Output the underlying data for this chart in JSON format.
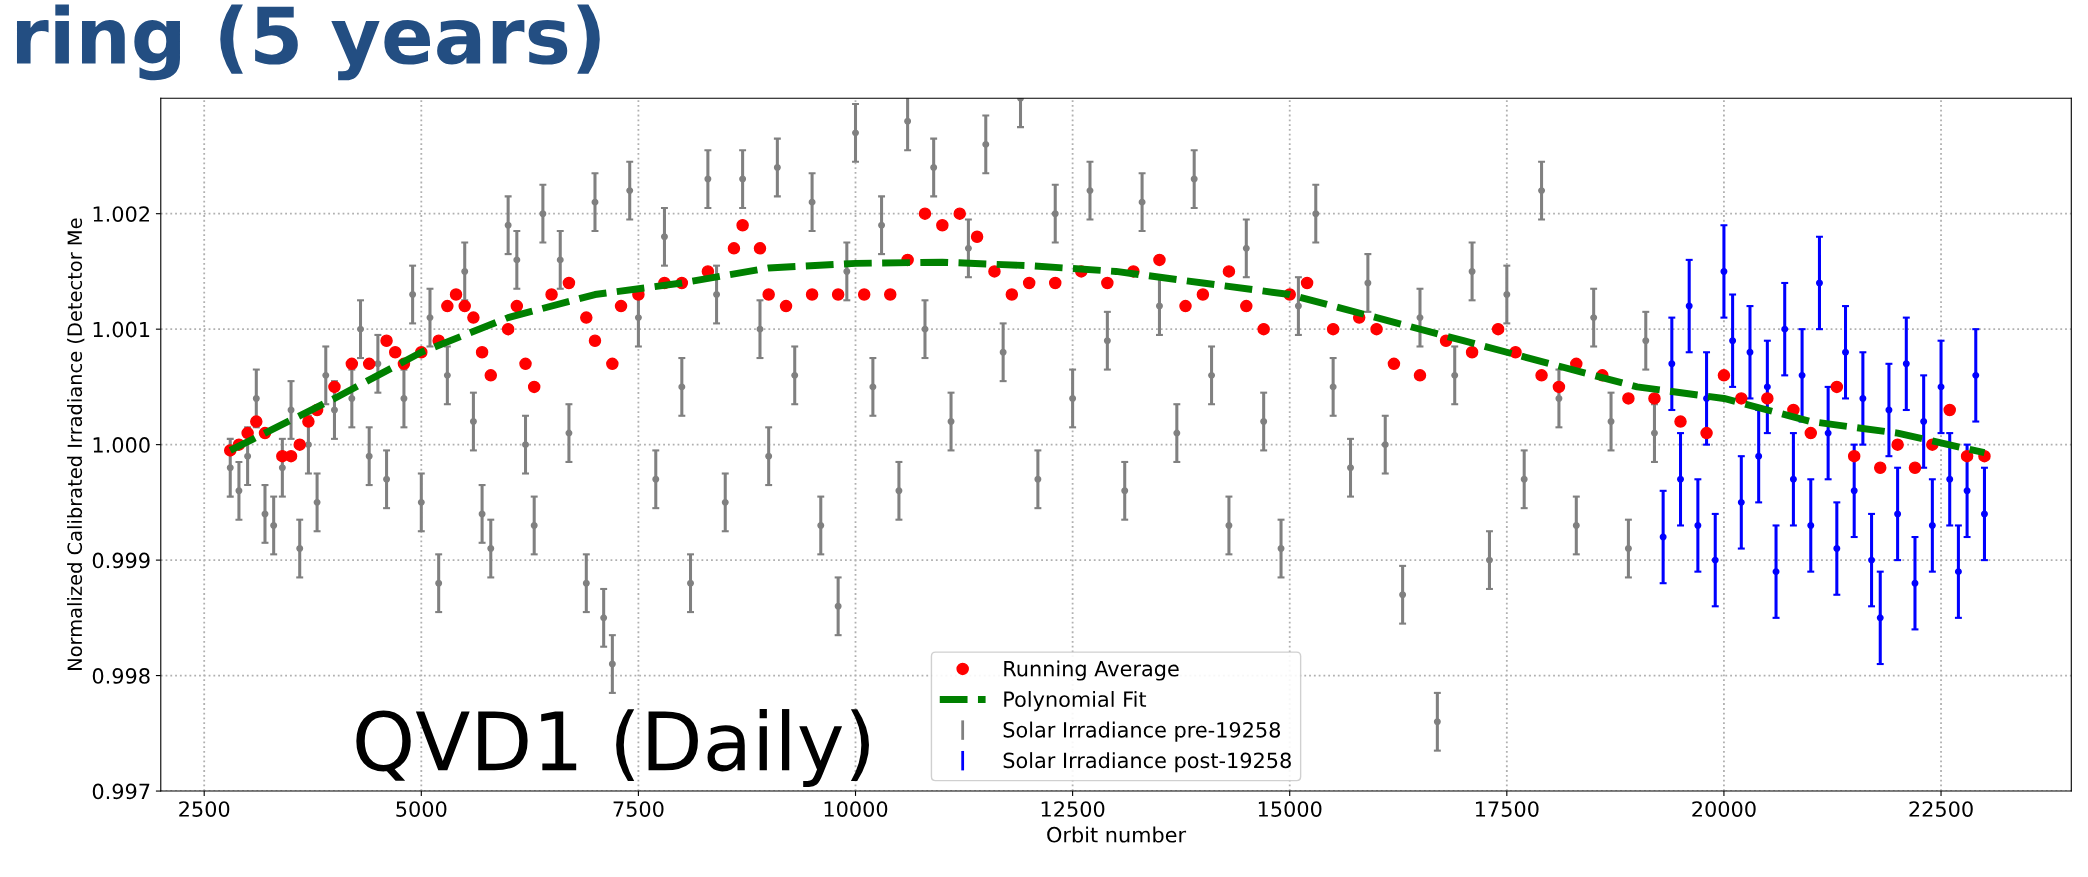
{
  "chart_data": {
    "type": "scatter",
    "title": "ring (5 years)",
    "xlabel": "Orbit number",
    "ylabel": "Normalized Calibrated Irradiance (Detector Me",
    "annotations": [
      "QVD1 (Daily)"
    ],
    "xlim": [
      2000,
      24000
    ],
    "ylim": [
      0.997,
      1.003
    ],
    "xticks": [
      2500,
      5000,
      7500,
      10000,
      12500,
      15000,
      17500,
      20000,
      22500
    ],
    "yticks": [
      {
        "value": 0.997,
        "label": "0.997"
      },
      {
        "value": 0.998,
        "label": "0.998"
      },
      {
        "value": 0.999,
        "label": "0.999"
      },
      {
        "value": 1.0,
        "label": "1.000"
      },
      {
        "value": 1.001,
        "label": "1.001"
      },
      {
        "value": 1.002,
        "label": "1.002"
      }
    ],
    "grid": true,
    "legend": "bottom",
    "series": [
      {
        "name": "Solar Irradiance pre-19258",
        "marker": "circle",
        "color": "#808080",
        "x": [
          2800,
          2900,
          3000,
          3100,
          3200,
          3300,
          3400,
          3500,
          3600,
          3700,
          3800,
          3900,
          4000,
          4200,
          4300,
          4400,
          4500,
          4600,
          4800,
          4900,
          5000,
          5100,
          5200,
          5300,
          5500,
          5600,
          5700,
          5800,
          6000,
          6100,
          6200,
          6300,
          6400,
          6600,
          6700,
          6900,
          7000,
          7100,
          7200,
          7400,
          7500,
          7700,
          7800,
          8000,
          8100,
          8300,
          8400,
          8500,
          8700,
          8900,
          9000,
          9100,
          9300,
          9500,
          9600,
          9800,
          9900,
          10000,
          10200,
          10300,
          10500,
          10600,
          10800,
          10900,
          11100,
          11300,
          11500,
          11700,
          11900,
          12100,
          12300,
          12500,
          12700,
          12900,
          13100,
          13300,
          13500,
          13700,
          13900,
          14100,
          14300,
          14500,
          14700,
          14900,
          15100,
          15300,
          15500,
          15700,
          15900,
          16100,
          16300,
          16500,
          16700,
          16900,
          17100,
          17300,
          17500,
          17700,
          17900,
          18100,
          18300,
          18500,
          18700,
          18900,
          19100,
          19200
        ],
        "values": [
          0.9998,
          0.9996,
          0.9999,
          1.0004,
          0.9994,
          0.9993,
          0.9998,
          1.0003,
          0.9991,
          1.0,
          0.9995,
          1.0006,
          1.0003,
          1.0004,
          1.001,
          0.9999,
          1.0007,
          0.9997,
          1.0004,
          1.0013,
          0.9995,
          1.0011,
          0.9988,
          1.0006,
          1.0015,
          1.0002,
          0.9994,
          0.9991,
          1.0019,
          1.0016,
          1.0,
          0.9993,
          1.002,
          1.0016,
          1.0001,
          0.9988,
          1.0021,
          0.9985,
          0.9981,
          1.0022,
          1.0011,
          0.9997,
          1.0018,
          1.0005,
          0.9988,
          1.0023,
          1.0013,
          0.9995,
          1.0023,
          1.001,
          0.9999,
          1.0024,
          1.0006,
          1.0021,
          0.9993,
          0.9986,
          1.0015,
          1.0027,
          1.0005,
          1.0019,
          0.9996,
          1.0028,
          1.001,
          1.0024,
          1.0002,
          1.0017,
          1.0026,
          1.0008,
          1.003,
          0.9997,
          1.002,
          1.0004,
          1.0022,
          1.0009,
          0.9996,
          1.0021,
          1.0012,
          1.0001,
          1.0023,
          1.0006,
          0.9993,
          1.0017,
          1.0002,
          0.9991,
          1.0012,
          1.002,
          1.0005,
          0.9998,
          1.0014,
          1.0,
          0.9987,
          1.0011,
          0.9976,
          1.0006,
          1.0015,
          0.999,
          1.0013,
          0.9997,
          1.0022,
          1.0004,
          0.9993,
          1.0011,
          1.0002,
          0.9991,
          1.0009,
          1.0001
        ],
        "errors": [
          0.00025,
          0.00025,
          0.00025,
          0.00025,
          0.00025,
          0.00025,
          0.00025,
          0.00025,
          0.00025,
          0.00025,
          0.00025,
          0.00025,
          0.00025,
          0.00025,
          0.00025,
          0.00025,
          0.00025,
          0.00025,
          0.00025,
          0.00025,
          0.00025,
          0.00025,
          0.00025,
          0.00025,
          0.00025,
          0.00025,
          0.00025,
          0.00025,
          0.00025,
          0.00025,
          0.00025,
          0.00025,
          0.00025,
          0.00025,
          0.00025,
          0.00025,
          0.00025,
          0.00025,
          0.00025,
          0.00025,
          0.00025,
          0.00025,
          0.00025,
          0.00025,
          0.00025,
          0.00025,
          0.00025,
          0.00025,
          0.00025,
          0.00025,
          0.00025,
          0.00025,
          0.00025,
          0.00025,
          0.00025,
          0.00025,
          0.00025,
          0.00025,
          0.00025,
          0.00025,
          0.00025,
          0.00025,
          0.00025,
          0.00025,
          0.00025,
          0.00025,
          0.00025,
          0.00025,
          0.00025,
          0.00025,
          0.00025,
          0.00025,
          0.00025,
          0.00025,
          0.00025,
          0.00025,
          0.00025,
          0.00025,
          0.00025,
          0.00025,
          0.00025,
          0.00025,
          0.00025,
          0.00025,
          0.00025,
          0.00025,
          0.00025,
          0.00025,
          0.00025,
          0.00025,
          0.00025,
          0.00025,
          0.00025,
          0.00025,
          0.00025,
          0.00025,
          0.00025,
          0.00025,
          0.00025,
          0.00025,
          0.00025,
          0.00025,
          0.00025,
          0.00025,
          0.00025,
          0.00025
        ]
      },
      {
        "name": "Solar Irradiance post-19258",
        "marker": "circle",
        "color": "#0000ff",
        "x": [
          19300,
          19400,
          19500,
          19600,
          19700,
          19800,
          19900,
          20000,
          20100,
          20200,
          20300,
          20400,
          20500,
          20600,
          20700,
          20800,
          20900,
          21000,
          21100,
          21200,
          21300,
          21400,
          21500,
          21600,
          21700,
          21800,
          21900,
          22000,
          22100,
          22200,
          22300,
          22400,
          22500,
          22600,
          22700,
          22800,
          22900,
          23000
        ],
        "values": [
          0.9992,
          1.0007,
          0.9997,
          1.0012,
          0.9993,
          1.0004,
          0.999,
          1.0015,
          1.0009,
          0.9995,
          1.0008,
          0.9999,
          1.0005,
          0.9989,
          1.001,
          0.9997,
          1.0006,
          0.9993,
          1.0014,
          1.0001,
          0.9991,
          1.0008,
          0.9996,
          1.0004,
          0.999,
          0.9985,
          1.0003,
          0.9994,
          1.0007,
          0.9988,
          1.0002,
          0.9993,
          1.0005,
          0.9997,
          0.9989,
          0.9996,
          1.0006,
          0.9994
        ],
        "errors": [
          0.0004,
          0.0004,
          0.0004,
          0.0004,
          0.0004,
          0.0004,
          0.0004,
          0.0004,
          0.0004,
          0.0004,
          0.0004,
          0.0004,
          0.0004,
          0.0004,
          0.0004,
          0.0004,
          0.0004,
          0.0004,
          0.0004,
          0.0004,
          0.0004,
          0.0004,
          0.0004,
          0.0004,
          0.0004,
          0.0004,
          0.0004,
          0.0004,
          0.0004,
          0.0004,
          0.0004,
          0.0004,
          0.0004,
          0.0004,
          0.0004,
          0.0004,
          0.0004,
          0.0004
        ]
      },
      {
        "name": "Running Average",
        "marker": "circle",
        "color": "#ff0000",
        "x": [
          2800,
          2900,
          3000,
          3100,
          3200,
          3400,
          3500,
          3600,
          3700,
          3800,
          4000,
          4200,
          4400,
          4600,
          4700,
          4800,
          5000,
          5200,
          5300,
          5400,
          5500,
          5600,
          5700,
          5800,
          6000,
          6100,
          6200,
          6300,
          6500,
          6700,
          6900,
          7000,
          7200,
          7300,
          7500,
          7800,
          8000,
          8300,
          8600,
          8700,
          8900,
          9000,
          9200,
          9500,
          9800,
          10100,
          10400,
          10600,
          10800,
          11000,
          11200,
          11400,
          11600,
          11800,
          12000,
          12300,
          12600,
          12900,
          13200,
          13500,
          13800,
          14000,
          14300,
          14500,
          14700,
          15000,
          15200,
          15500,
          15800,
          16000,
          16200,
          16500,
          16800,
          17100,
          17400,
          17600,
          17900,
          18100,
          18300,
          18600,
          18900,
          19200,
          19500,
          19800,
          20000,
          20200,
          20500,
          20800,
          21000,
          21300,
          21500,
          21800,
          22000,
          22200,
          22400,
          22600,
          22800,
          23000
        ],
        "values": [
          0.99995,
          1.0,
          1.0001,
          1.0002,
          1.0001,
          0.9999,
          0.9999,
          1.0,
          1.0002,
          1.0003,
          1.0005,
          1.0007,
          1.0007,
          1.0009,
          1.0008,
          1.0007,
          1.0008,
          1.0009,
          1.0012,
          1.0013,
          1.0012,
          1.0011,
          1.0008,
          1.0006,
          1.001,
          1.0012,
          1.0007,
          1.0005,
          1.0013,
          1.0014,
          1.0011,
          1.0009,
          1.0007,
          1.0012,
          1.0013,
          1.0014,
          1.0014,
          1.0015,
          1.0017,
          1.0019,
          1.0017,
          1.0013,
          1.0012,
          1.0013,
          1.0013,
          1.0013,
          1.0013,
          1.0016,
          1.002,
          1.0019,
          1.002,
          1.0018,
          1.0015,
          1.0013,
          1.0014,
          1.0014,
          1.0015,
          1.0014,
          1.0015,
          1.0016,
          1.0012,
          1.0013,
          1.0015,
          1.0012,
          1.001,
          1.0013,
          1.0014,
          1.001,
          1.0011,
          1.001,
          1.0007,
          1.0006,
          1.0009,
          1.0008,
          1.001,
          1.0008,
          1.0006,
          1.0005,
          1.0007,
          1.0006,
          1.0004,
          1.0004,
          1.0002,
          1.0001,
          1.0006,
          1.0004,
          1.0004,
          1.0003,
          1.0001,
          1.0005,
          0.9999,
          0.9998,
          1.0,
          0.9998,
          1.0,
          1.0003,
          0.9999,
          0.9999
        ]
      },
      {
        "name": "Polynomial Fit",
        "type": "line",
        "marker": "none",
        "line_style": "dashed",
        "color": "#008000",
        "x": [
          2800,
          4000,
          5000,
          6000,
          7000,
          8000,
          9000,
          10000,
          11000,
          12000,
          13000,
          14000,
          15000,
          16000,
          17000,
          18000,
          19000,
          20000,
          21000,
          22000,
          23000
        ],
        "values": [
          0.99995,
          1.0004,
          1.0008,
          1.0011,
          1.0013,
          1.0014,
          1.00153,
          1.00157,
          1.00158,
          1.00155,
          1.0015,
          1.0014,
          1.0013,
          1.0011,
          1.0009,
          1.0007,
          1.0005,
          1.0004,
          1.0002,
          1.0001,
          0.99993
        ]
      }
    ]
  }
}
